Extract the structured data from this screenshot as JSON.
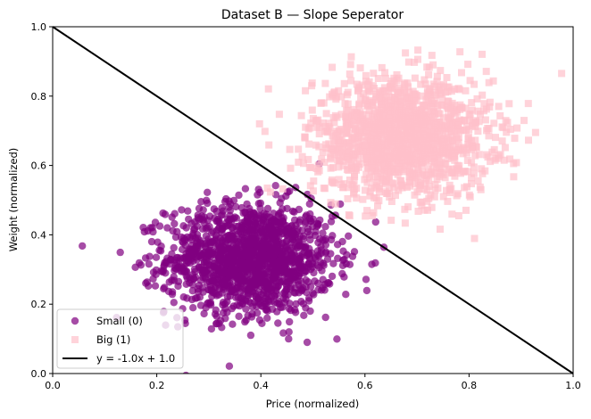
{
  "chart_data": {
    "type": "scatter",
    "title": "Dataset B — Slope Seperator",
    "xlabel": "Price (normalized)",
    "ylabel": "Weight (normalized)",
    "xlim": [
      0,
      1
    ],
    "ylim": [
      0,
      1
    ],
    "x_ticks": [
      "0.0",
      "0.2",
      "0.4",
      "0.6",
      "0.8",
      "1.0"
    ],
    "y_ticks": [
      "0.0",
      "0.2",
      "0.4",
      "0.6",
      "0.8",
      "1.0"
    ],
    "grid": false,
    "legend_position": "lower-left",
    "series": [
      {
        "name": "Small (0)",
        "marker": "circle",
        "color": "#800080",
        "alpha": 0.7,
        "count": 1500,
        "center": [
          0.38,
          0.33
        ],
        "spread": [
          0.08,
          0.08
        ]
      },
      {
        "name": "Big (1)",
        "marker": "square",
        "color": "#ffc0cb",
        "alpha": 0.7,
        "count": 1500,
        "center": [
          0.67,
          0.68
        ],
        "spread": [
          0.085,
          0.085
        ]
      }
    ],
    "lines": [
      {
        "name": "y = -1.0x + 1.0",
        "slope": -1.0,
        "intercept": 1.0,
        "color": "#000000"
      }
    ]
  }
}
